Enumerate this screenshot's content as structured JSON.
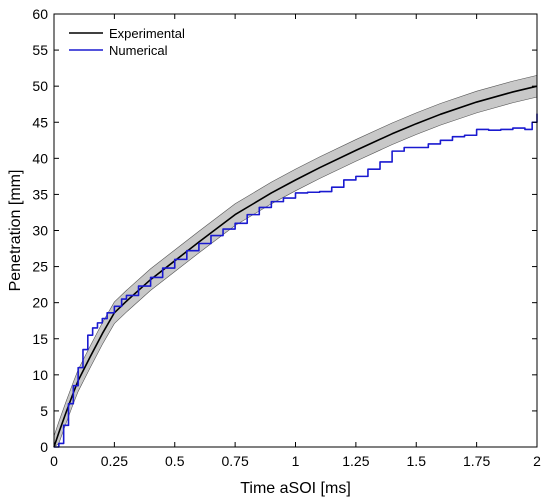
{
  "chart_data": {
    "type": "line",
    "xlabel": "Time aSOI [ms]",
    "ylabel": "Penetration [mm]",
    "xlim": [
      0,
      2
    ],
    "ylim": [
      0,
      60
    ],
    "x_ticks": [
      0,
      0.25,
      0.5,
      0.75,
      1,
      1.25,
      1.5,
      1.75,
      2
    ],
    "x_tick_labels": [
      "0",
      "0.25",
      "0.5",
      "0.75",
      "1",
      "1.25",
      "1.5",
      "1.75",
      "2"
    ],
    "y_ticks": [
      0,
      5,
      10,
      15,
      20,
      25,
      30,
      35,
      40,
      45,
      50,
      55,
      60
    ],
    "y_tick_labels": [
      "0",
      "5",
      "10",
      "15",
      "20",
      "25",
      "30",
      "35",
      "40",
      "45",
      "50",
      "55",
      "60"
    ],
    "grid": false,
    "legend_position": "top-left",
    "series": [
      {
        "name": "Experimental",
        "color": "#000000",
        "band_color": "#c8c8c8",
        "band_width": 1.5,
        "x": [
          0,
          0.02,
          0.05,
          0.08,
          0.1,
          0.15,
          0.2,
          0.25,
          0.3,
          0.4,
          0.5,
          0.6,
          0.75,
          0.9,
          1.0,
          1.1,
          1.25,
          1.4,
          1.5,
          1.6,
          1.75,
          1.9,
          2.0
        ],
        "y": [
          0,
          2,
          4.8,
          7.5,
          9.2,
          12.5,
          15.7,
          18.6,
          20.2,
          23.2,
          25.8,
          28.4,
          32.2,
          35.2,
          37.0,
          38.7,
          41.1,
          43.4,
          44.8,
          46.1,
          47.8,
          49.2,
          50.0
        ]
      },
      {
        "name": "Numerical",
        "color": "#1a1ad0",
        "x": [
          0,
          0.02,
          0.04,
          0.06,
          0.08,
          0.1,
          0.12,
          0.14,
          0.16,
          0.18,
          0.2,
          0.22,
          0.25,
          0.28,
          0.3,
          0.35,
          0.4,
          0.45,
          0.5,
          0.55,
          0.6,
          0.65,
          0.7,
          0.75,
          0.8,
          0.85,
          0.9,
          0.95,
          1.0,
          1.05,
          1.1,
          1.15,
          1.2,
          1.25,
          1.3,
          1.35,
          1.4,
          1.45,
          1.5,
          1.55,
          1.6,
          1.65,
          1.7,
          1.75,
          1.8,
          1.85,
          1.9,
          1.95,
          1.98,
          2.0
        ],
        "y": [
          0,
          0.5,
          3,
          6,
          8.5,
          11,
          13.5,
          15.5,
          16.5,
          17.2,
          17.8,
          18.6,
          19.5,
          20.5,
          21.0,
          22.3,
          23.5,
          24.8,
          26.0,
          27.2,
          28.2,
          29.3,
          30.2,
          31.0,
          32.2,
          33.2,
          34.0,
          34.5,
          35.2,
          35.3,
          35.4,
          36.0,
          37.0,
          37.5,
          38.5,
          39.5,
          41.0,
          41.5,
          41.5,
          42.0,
          42.5,
          43.0,
          43.2,
          44.0,
          43.9,
          44.0,
          44.2,
          44.0,
          45.0,
          46.2
        ]
      }
    ]
  }
}
